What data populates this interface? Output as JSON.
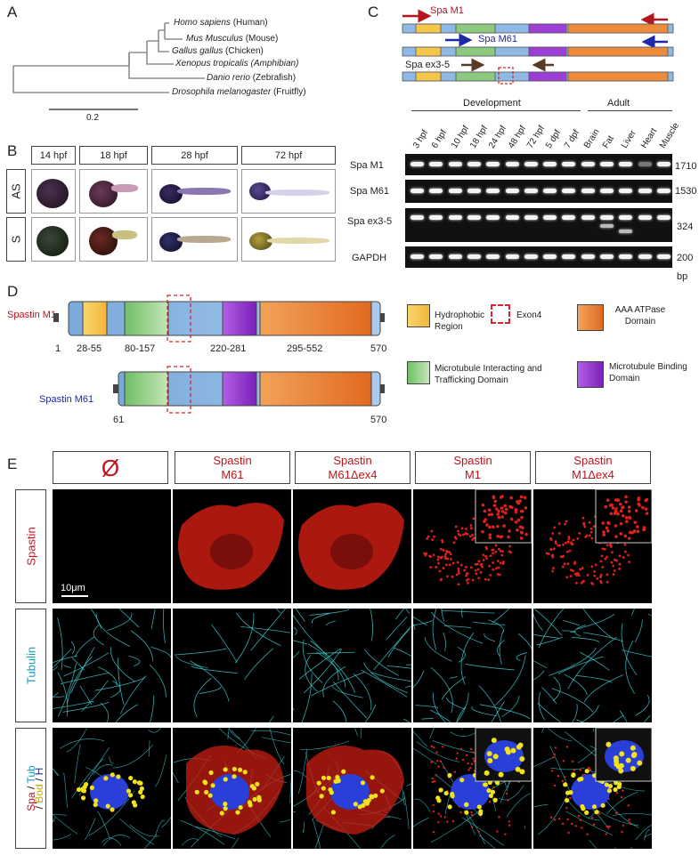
{
  "panelA": {
    "letter": "A",
    "species": [
      {
        "name": "Homo sapiens",
        "common": "(Human)"
      },
      {
        "name": "Mus Musculus",
        "common": "(Mouse)"
      },
      {
        "name": "Gallus gallus",
        "common": "(Chicken)"
      },
      {
        "name": "Xenopus tropicalis",
        "common": "(Amphibian)"
      },
      {
        "name": "Danio rerio",
        "common": "(Zebrafish)"
      },
      {
        "name": "Drosophila melanogaster",
        "common": "(Fruitfly)"
      }
    ],
    "scale_label": "0.2"
  },
  "panelB": {
    "letter": "B",
    "stages": [
      "14 hpf",
      "18 hpf",
      "28 hpf",
      "72 hpf"
    ],
    "rows": [
      "AS",
      "S"
    ]
  },
  "panelC": {
    "letter": "C",
    "constructs": [
      "Spa M1",
      "Spa M61",
      "Spa ex3-5"
    ],
    "group_development": "Development",
    "group_adult": "Adult",
    "lanes": [
      "3 hpf",
      "6 hpf",
      "10 hpf",
      "18 hpf",
      "24 hpf",
      "48 hpf",
      "72 hpf",
      "5 dpf",
      "7 dpf",
      "Brain",
      "Fat",
      "Liver",
      "Heart",
      "Muscle"
    ],
    "gels": [
      {
        "name": "Spa M1",
        "size": "1710"
      },
      {
        "name": "Spa M61",
        "size": "1530"
      },
      {
        "name": "Spa ex3-5",
        "size": "324"
      },
      {
        "name": "GAPDH",
        "size": "200"
      }
    ],
    "unit": "bp"
  },
  "panelD": {
    "letter": "D",
    "m1_label": "Spastin M1",
    "m61_label": "Spastin M61",
    "m1_positions": [
      "1",
      "28-55",
      "80-157",
      "220-281",
      "295-552",
      "570"
    ],
    "m61_positions": [
      "61",
      "570"
    ],
    "legend": {
      "hydrophobic": "Hydrophobic Region",
      "exon4": "Exon4",
      "aaa": "AAA ATPase Domain",
      "mit": "Microtubule Interacting and Trafficking Domain",
      "mtb": "Microtubule Binding Domain"
    },
    "colors": {
      "hydrophobic": "#f5c64a",
      "mit": "#8cc97e",
      "mtb": "#9b3fd6",
      "aaa": "#ee8a3c",
      "base": "#8fb9e4",
      "exon": "#d9262b"
    }
  },
  "panelE": {
    "letter": "E",
    "columns": [
      {
        "line1": "Ø",
        "line2": ""
      },
      {
        "line1": "Spastin",
        "line2": "M61"
      },
      {
        "line1": "Spastin",
        "line2": "M61Δex4"
      },
      {
        "line1": "Spastin",
        "line2": "M1"
      },
      {
        "line1": "Spastin",
        "line2": "M1Δex4"
      }
    ],
    "rows": {
      "spastin": "Spastin",
      "tubulin": "Tubulin",
      "merge_spa": "Spa",
      "merge_sep1": " / ",
      "merge_tub": "Tub",
      "merge_sep2": "/ ",
      "merge_bod": "Bod",
      "merge_sep3": " / ",
      "merge_h": "H"
    },
    "scale_bar": "10μm"
  }
}
